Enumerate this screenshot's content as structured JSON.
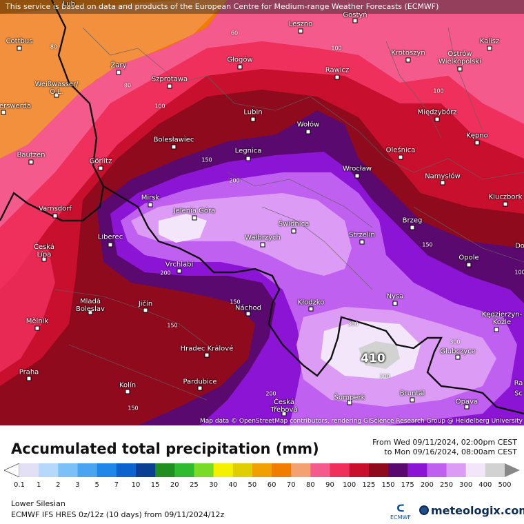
{
  "disclaimer": "This service is based on data and products of the European Centre for Medium-range Weather Forecasts (ECMWF)",
  "attribution": "Map data © OpenStreetMap contributors, rendering GIScience Research Group @ Heidelberg University",
  "max_value": "410",
  "cities": [
    {
      "name": "Cottbus"
    },
    {
      "name": "Gostyń"
    },
    {
      "name": "Leszno"
    },
    {
      "name": "Kalisz"
    },
    {
      "name": "Żary"
    },
    {
      "name": "Głogów"
    },
    {
      "name": "Krotoszyn"
    },
    {
      "name": "Ostrów\nWielkopolski"
    },
    {
      "name": "Rawicz"
    },
    {
      "name": "Szprotawa"
    },
    {
      "name": "Weißwasser/\nO.L."
    },
    {
      "name": "erswerda"
    },
    {
      "name": "Lubin"
    },
    {
      "name": "Międzybórz"
    },
    {
      "name": "Wołów"
    },
    {
      "name": "Bolesławiec"
    },
    {
      "name": "Kępno"
    },
    {
      "name": "Bautzen"
    },
    {
      "name": "Legnica"
    },
    {
      "name": "Oleśnica"
    },
    {
      "name": "Görlitz"
    },
    {
      "name": "Wrocław"
    },
    {
      "name": "Namysłów"
    },
    {
      "name": "Mirsk"
    },
    {
      "name": "Kluczbork"
    },
    {
      "name": "Varnsdorf"
    },
    {
      "name": "Jelenia Góra"
    },
    {
      "name": "Świdnica"
    },
    {
      "name": "Brzeg"
    },
    {
      "name": "Liberec"
    },
    {
      "name": "Wałbrzych"
    },
    {
      "name": "Strzelin"
    },
    {
      "name": "Česká\nLípa"
    },
    {
      "name": "Vrchlabí"
    },
    {
      "name": "Opole"
    },
    {
      "name": "Do"
    },
    {
      "name": "Nysa"
    },
    {
      "name": "Mladá\nBoleslav"
    },
    {
      "name": "Jičín"
    },
    {
      "name": "Kłodzko"
    },
    {
      "name": "Kędzierzyn-\nKoźle"
    },
    {
      "name": "Mělník"
    },
    {
      "name": "Náchod"
    },
    {
      "name": "Hradec Králové"
    },
    {
      "name": "Głubczyce"
    },
    {
      "name": "Praha"
    },
    {
      "name": "Ra"
    },
    {
      "name": "Sc"
    },
    {
      "name": "Pardubice"
    },
    {
      "name": "Kolín"
    },
    {
      "name": "Česká\nTřebová"
    },
    {
      "name": "Šumperk"
    },
    {
      "name": "Bruntál"
    },
    {
      "name": "Opava"
    },
    {
      "name": "Lub"
    }
  ],
  "contour_labels": [
    "60",
    "80",
    "80",
    "100",
    "100",
    "100",
    "150",
    "200",
    "200",
    "300",
    "300",
    "300",
    "150",
    "150",
    "200",
    "150",
    "100",
    "150"
  ],
  "legend": {
    "title": "Accumulated total precipitation (mm)",
    "from_line": "From Wed 09/11/2024, 02:00pm CEST",
    "to_line": "to Mon 09/16/2024, 08:00am CEST",
    "ticks": [
      "0.1",
      "1",
      "2",
      "3",
      "5",
      "7",
      "10",
      "15",
      "20",
      "25",
      "30",
      "40",
      "50",
      "60",
      "70",
      "80",
      "90",
      "100",
      "125",
      "150",
      "175",
      "200",
      "250",
      "300",
      "400",
      "500"
    ],
    "colors": [
      "#e3e0f5",
      "#b5d8fb",
      "#7cc0f8",
      "#4aa5f0",
      "#1f86ea",
      "#0a63cf",
      "#0a3f94",
      "#1f8f1f",
      "#2fba2f",
      "#78dc26",
      "#f4f000",
      "#e0cf00",
      "#f0a000",
      "#f07c00",
      "#f4a070",
      "#f45a8c",
      "#f0305c",
      "#c8102e",
      "#900a1e",
      "#5a0a6e",
      "#8c14d4",
      "#c060f0",
      "#dc9cf5",
      "#f3e6fb",
      "#d2d2d2"
    ]
  },
  "region": "Lower Silesian",
  "model_line": "ECMWF IFS HRES 0z/12z (10 days)  from  09/11/2024/12z",
  "ecmwf_logo_text": "ECMWF",
  "brand": "meteologix.com"
}
